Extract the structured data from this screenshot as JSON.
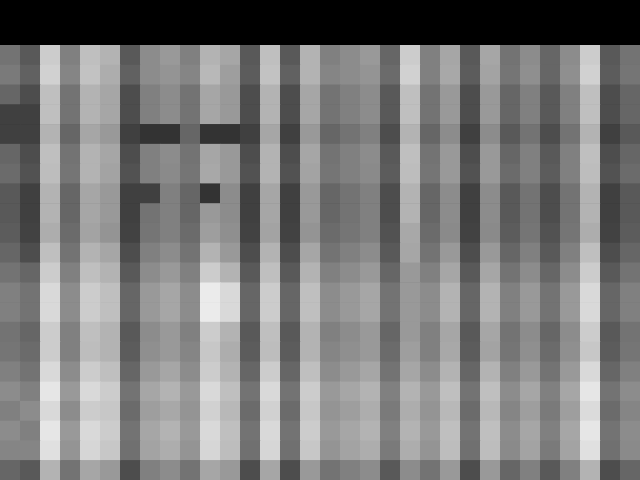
{
  "chart_data": {
    "type": "heatmap",
    "tick_labels": false,
    "zlim": [
      0,
      100
    ],
    "cells": [
      [
        45,
        35,
        80,
        50,
        75,
        70,
        35,
        55,
        60,
        50,
        70,
        65,
        35,
        75,
        35,
        70,
        50,
        55,
        60,
        40,
        80,
        50,
        65,
        35,
        65,
        45,
        55,
        40,
        55,
        80,
        35,
        45
      ],
      [
        48,
        38,
        82,
        52,
        76,
        68,
        38,
        55,
        58,
        52,
        72,
        62,
        36,
        76,
        38,
        70,
        52,
        55,
        58,
        42,
        82,
        50,
        66,
        36,
        64,
        46,
        56,
        40,
        56,
        82,
        36,
        46
      ],
      [
        40,
        30,
        75,
        45,
        70,
        65,
        30,
        50,
        55,
        45,
        65,
        60,
        30,
        70,
        30,
        65,
        45,
        50,
        55,
        35,
        75,
        45,
        60,
        30,
        60,
        40,
        50,
        35,
        50,
        75,
        30,
        40
      ],
      [
        25,
        25,
        75,
        45,
        70,
        65,
        30,
        50,
        55,
        45,
        65,
        60,
        30,
        70,
        30,
        65,
        45,
        50,
        55,
        35,
        75,
        45,
        60,
        30,
        60,
        40,
        50,
        35,
        50,
        75,
        30,
        40
      ],
      [
        25,
        25,
        70,
        40,
        65,
        60,
        25,
        20,
        20,
        40,
        20,
        20,
        25,
        65,
        25,
        60,
        40,
        45,
        50,
        30,
        70,
        40,
        55,
        25,
        55,
        35,
        45,
        30,
        45,
        70,
        25,
        35
      ],
      [
        40,
        30,
        75,
        45,
        70,
        65,
        30,
        50,
        55,
        45,
        65,
        60,
        30,
        70,
        30,
        65,
        45,
        50,
        55,
        35,
        75,
        45,
        60,
        30,
        60,
        40,
        50,
        35,
        50,
        75,
        30,
        40
      ],
      [
        42,
        32,
        74,
        46,
        70,
        64,
        32,
        50,
        54,
        46,
        66,
        60,
        32,
        70,
        32,
        64,
        46,
        50,
        54,
        36,
        74,
        46,
        60,
        32,
        60,
        42,
        50,
        36,
        50,
        74,
        32,
        42
      ],
      [
        35,
        25,
        70,
        40,
        65,
        60,
        25,
        25,
        50,
        40,
        20,
        55,
        25,
        65,
        25,
        60,
        40,
        45,
        50,
        30,
        70,
        40,
        55,
        25,
        55,
        35,
        45,
        30,
        45,
        70,
        25,
        35
      ],
      [
        35,
        25,
        70,
        40,
        65,
        60,
        25,
        45,
        50,
        40,
        60,
        55,
        25,
        65,
        25,
        60,
        40,
        45,
        50,
        30,
        70,
        40,
        55,
        25,
        55,
        35,
        45,
        30,
        45,
        70,
        25,
        35
      ],
      [
        36,
        26,
        68,
        42,
        64,
        58,
        26,
        46,
        50,
        42,
        62,
        56,
        26,
        64,
        26,
        58,
        42,
        46,
        50,
        32,
        66,
        42,
        54,
        26,
        54,
        36,
        46,
        32,
        46,
        68,
        26,
        36
      ],
      [
        40,
        30,
        75,
        45,
        70,
        65,
        30,
        50,
        55,
        45,
        70,
        60,
        30,
        70,
        30,
        65,
        45,
        50,
        55,
        35,
        65,
        45,
        60,
        30,
        60,
        40,
        50,
        35,
        50,
        75,
        30,
        40
      ],
      [
        45,
        40,
        80,
        50,
        75,
        70,
        35,
        55,
        60,
        50,
        80,
        70,
        35,
        75,
        35,
        70,
        50,
        55,
        60,
        40,
        60,
        50,
        65,
        35,
        65,
        45,
        55,
        40,
        55,
        80,
        35,
        45
      ],
      [
        50,
        45,
        85,
        55,
        80,
        75,
        40,
        60,
        65,
        55,
        92,
        85,
        40,
        80,
        40,
        75,
        55,
        60,
        65,
        45,
        60,
        55,
        70,
        40,
        70,
        50,
        60,
        45,
        60,
        85,
        40,
        50
      ],
      [
        50,
        45,
        85,
        55,
        80,
        75,
        40,
        60,
        65,
        55,
        92,
        85,
        40,
        80,
        40,
        75,
        55,
        60,
        65,
        45,
        60,
        55,
        70,
        40,
        70,
        50,
        60,
        45,
        60,
        85,
        40,
        50
      ],
      [
        45,
        40,
        80,
        50,
        75,
        70,
        35,
        55,
        60,
        50,
        80,
        70,
        35,
        75,
        35,
        70,
        50,
        55,
        60,
        40,
        60,
        50,
        65,
        35,
        65,
        45,
        55,
        40,
        55,
        80,
        35,
        45
      ],
      [
        46,
        42,
        80,
        50,
        74,
        70,
        36,
        56,
        60,
        52,
        78,
        68,
        36,
        74,
        36,
        70,
        52,
        56,
        60,
        42,
        62,
        50,
        66,
        36,
        64,
        46,
        56,
        42,
        56,
        78,
        36,
        46
      ],
      [
        50,
        45,
        85,
        55,
        80,
        75,
        40,
        60,
        65,
        55,
        80,
        70,
        40,
        80,
        40,
        75,
        55,
        60,
        65,
        45,
        65,
        55,
        70,
        40,
        70,
        50,
        60,
        45,
        60,
        85,
        40,
        50
      ],
      [
        55,
        50,
        90,
        60,
        85,
        80,
        45,
        65,
        70,
        60,
        85,
        75,
        45,
        85,
        45,
        80,
        60,
        65,
        70,
        50,
        70,
        60,
        75,
        45,
        75,
        55,
        65,
        50,
        65,
        90,
        45,
        55
      ],
      [
        50,
        55,
        85,
        55,
        80,
        78,
        42,
        62,
        66,
        58,
        82,
        72,
        42,
        82,
        42,
        78,
        58,
        62,
        68,
        48,
        68,
        58,
        72,
        42,
        72,
        52,
        62,
        48,
        62,
        86,
        42,
        52
      ],
      [
        55,
        50,
        90,
        60,
        85,
        80,
        45,
        65,
        70,
        60,
        85,
        75,
        45,
        85,
        45,
        80,
        60,
        65,
        70,
        50,
        70,
        60,
        75,
        45,
        75,
        55,
        65,
        50,
        65,
        90,
        45,
        55
      ],
      [
        52,
        52,
        88,
        58,
        84,
        78,
        44,
        64,
        68,
        58,
        84,
        74,
        44,
        84,
        44,
        78,
        58,
        64,
        68,
        48,
        68,
        58,
        74,
        44,
        74,
        54,
        64,
        48,
        64,
        88,
        44,
        54
      ],
      [
        40,
        35,
        70,
        45,
        65,
        60,
        30,
        50,
        55,
        45,
        65,
        60,
        30,
        65,
        30,
        60,
        45,
        50,
        55,
        35,
        55,
        45,
        60,
        30,
        60,
        40,
        50,
        35,
        50,
        70,
        30,
        40
      ]
    ]
  }
}
